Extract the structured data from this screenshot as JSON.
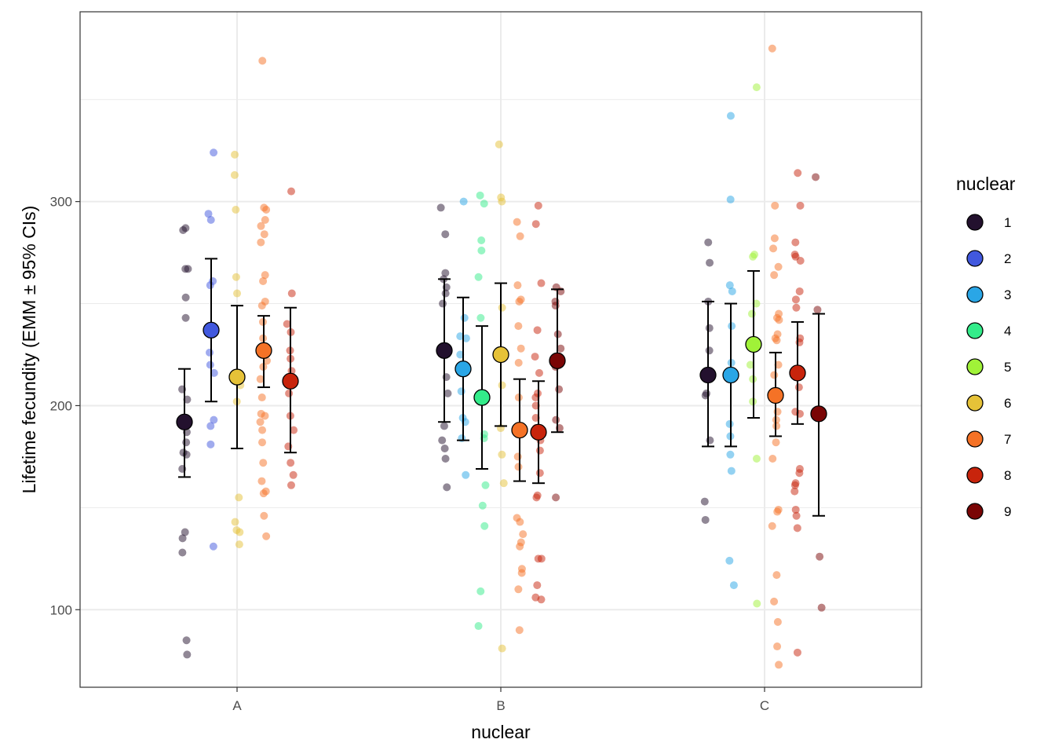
{
  "chart_data": {
    "type": "scatter",
    "title": "",
    "xlabel": "nuclear",
    "ylabel": "Lifetime fecundity (EMM ± 95% CIs)",
    "categories": [
      "A",
      "B",
      "C"
    ],
    "yticks": [
      100,
      200,
      300
    ],
    "ylim": [
      62,
      393
    ],
    "grid": true,
    "legend": {
      "title": "nuclear",
      "position": "right",
      "entries": [
        "1",
        "2",
        "3",
        "4",
        "5",
        "6",
        "7",
        "8",
        "9"
      ]
    },
    "colors": {
      "1": "#23112e",
      "2": "#4158de",
      "3": "#2aa6e6",
      "4": "#33ec8a",
      "5": "#a0f238",
      "6": "#e6c238",
      "7": "#f57226",
      "8": "#c8240c",
      "9": "#7a0505"
    },
    "emm": [
      {
        "category": "A",
        "group": "1",
        "mean": 192,
        "lower": 165,
        "upper": 218
      },
      {
        "category": "A",
        "group": "2",
        "mean": 237,
        "lower": 202,
        "upper": 272
      },
      {
        "category": "A",
        "group": "6",
        "mean": 214,
        "lower": 179,
        "upper": 249
      },
      {
        "category": "A",
        "group": "7",
        "mean": 227,
        "lower": 209,
        "upper": 244
      },
      {
        "category": "A",
        "group": "8",
        "mean": 212,
        "lower": 177,
        "upper": 248
      },
      {
        "category": "B",
        "group": "1",
        "mean": 227,
        "lower": 192,
        "upper": 262
      },
      {
        "category": "B",
        "group": "3",
        "mean": 218,
        "lower": 183,
        "upper": 253
      },
      {
        "category": "B",
        "group": "4",
        "mean": 204,
        "lower": 169,
        "upper": 239
      },
      {
        "category": "B",
        "group": "6",
        "mean": 225,
        "lower": 190,
        "upper": 260
      },
      {
        "category": "B",
        "group": "7",
        "mean": 188,
        "lower": 163,
        "upper": 213
      },
      {
        "category": "B",
        "group": "8",
        "mean": 187,
        "lower": 162,
        "upper": 212
      },
      {
        "category": "B",
        "group": "9",
        "mean": 222,
        "lower": 187,
        "upper": 257
      },
      {
        "category": "C",
        "group": "1",
        "mean": 215,
        "lower": 180,
        "upper": 251
      },
      {
        "category": "C",
        "group": "3",
        "mean": 215,
        "lower": 180,
        "upper": 250
      },
      {
        "category": "C",
        "group": "5",
        "mean": 230,
        "lower": 194,
        "upper": 266
      },
      {
        "category": "C",
        "group": "7",
        "mean": 205,
        "lower": 185,
        "upper": 226
      },
      {
        "category": "C",
        "group": "8",
        "mean": 216,
        "lower": 191,
        "upper": 241
      },
      {
        "category": "C",
        "group": "9",
        "mean": 196,
        "lower": 146,
        "upper": 245
      }
    ],
    "raw_points": [
      {
        "category": "A",
        "group": "1",
        "values": [
          287,
          286,
          267,
          267,
          253,
          243,
          208,
          203,
          191,
          187,
          182,
          177,
          176,
          169,
          138,
          135,
          128,
          85,
          78
        ]
      },
      {
        "category": "A",
        "group": "2",
        "values": [
          324,
          294,
          291,
          261,
          259,
          226,
          220,
          216,
          193,
          190,
          181,
          131
        ]
      },
      {
        "category": "A",
        "group": "6",
        "values": [
          323,
          313,
          296,
          263,
          255,
          210,
          202,
          155,
          143,
          139,
          138,
          132
        ]
      },
      {
        "category": "A",
        "group": "7",
        "values": [
          369,
          297,
          296,
          291,
          288,
          284,
          280,
          264,
          261,
          251,
          249,
          241,
          233,
          228,
          222,
          219,
          213,
          204,
          196,
          195,
          192,
          188,
          182,
          172,
          163,
          158,
          157,
          146,
          136
        ]
      },
      {
        "category": "A",
        "group": "8",
        "values": [
          305,
          255,
          240,
          236,
          227,
          223,
          217,
          206,
          195,
          188,
          180,
          172,
          166,
          161
        ]
      },
      {
        "category": "B",
        "group": "1",
        "values": [
          297,
          284,
          265,
          262,
          258,
          255,
          250,
          214,
          206,
          190,
          183,
          179,
          174,
          160
        ]
      },
      {
        "category": "B",
        "group": "3",
        "values": [
          300,
          243,
          234,
          233,
          225,
          207,
          194,
          192,
          184,
          166
        ]
      },
      {
        "category": "B",
        "group": "4",
        "values": [
          303,
          299,
          281,
          276,
          263,
          243,
          205,
          186,
          184,
          161,
          151,
          141,
          109,
          92
        ]
      },
      {
        "category": "B",
        "group": "6",
        "values": [
          328,
          302,
          300,
          248,
          210,
          189,
          176,
          162,
          81
        ]
      },
      {
        "category": "B",
        "group": "7",
        "values": [
          290,
          283,
          259,
          252,
          251,
          239,
          228,
          221,
          204,
          175,
          170,
          145,
          143,
          137,
          133,
          131,
          120,
          118,
          110,
          90
        ]
      },
      {
        "category": "B",
        "group": "8",
        "values": [
          298,
          289,
          260,
          237,
          224,
          216,
          206,
          204,
          200,
          194,
          189,
          183,
          178,
          167,
          156,
          155,
          125,
          125,
          112,
          106,
          105
        ]
      },
      {
        "category": "B",
        "group": "9",
        "values": [
          258,
          256,
          251,
          249,
          235,
          228,
          219,
          208,
          193,
          189,
          155
        ]
      },
      {
        "category": "C",
        "group": "1",
        "values": [
          280,
          270,
          251,
          238,
          227,
          206,
          205,
          183,
          153,
          144
        ]
      },
      {
        "category": "C",
        "group": "3",
        "values": [
          342,
          301,
          259,
          256,
          239,
          221,
          191,
          185,
          176,
          168,
          124,
          112
        ]
      },
      {
        "category": "C",
        "group": "5",
        "values": [
          356,
          274,
          273,
          250,
          245,
          220,
          213,
          202,
          174,
          103
        ]
      },
      {
        "category": "C",
        "group": "7",
        "values": [
          375,
          298,
          282,
          277,
          268,
          264,
          245,
          243,
          242,
          235,
          233,
          232,
          220,
          215,
          197,
          193,
          190,
          182,
          174,
          149,
          148,
          141,
          117,
          104,
          94,
          82,
          73
        ]
      },
      {
        "category": "C",
        "group": "8",
        "values": [
          314,
          298,
          280,
          274,
          273,
          271,
          256,
          252,
          248,
          233,
          231,
          214,
          209,
          197,
          196,
          169,
          167,
          162,
          161,
          158,
          149,
          146,
          140,
          79
        ]
      },
      {
        "category": "C",
        "group": "9",
        "values": [
          312,
          247,
          126,
          101
        ]
      }
    ]
  }
}
